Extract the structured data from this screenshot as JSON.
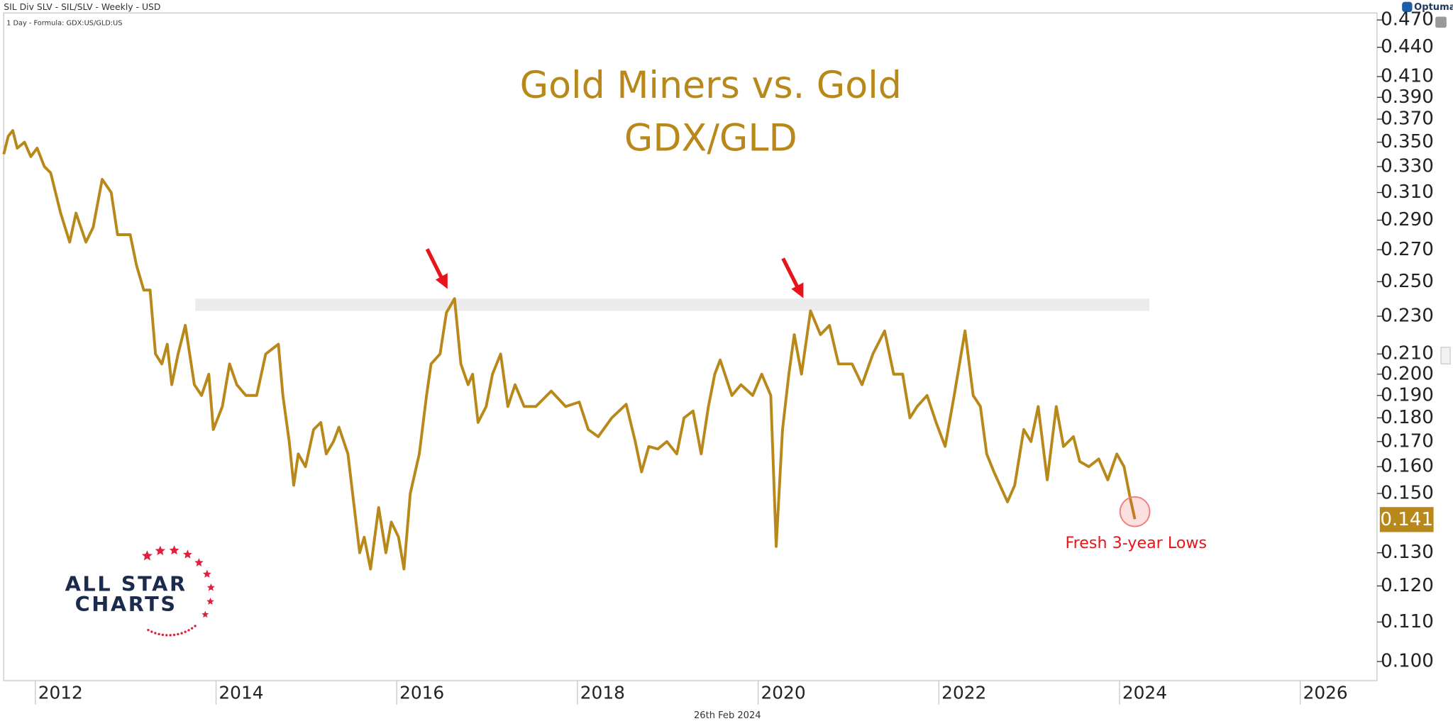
{
  "chart_data": {
    "type": "line",
    "header": "SIL Div SLV - SIL/SLV - Weekly - USD",
    "formula": "1 Day - Formula: GDX:US/GLD:US",
    "brand": "Optuma",
    "title": "Gold Miners vs. Gold",
    "subtitle": "GDX/GLD",
    "annotation": "Fresh 3-year Lows",
    "date_label": "26th Feb 2024",
    "logo": [
      "ALL STAR",
      "CHARTS"
    ],
    "color": "#b8891a",
    "y_scale": "log",
    "xlim": [
      2011.65,
      2026.85
    ],
    "xticks": [
      2012,
      2014,
      2016,
      2018,
      2020,
      2022,
      2024,
      2026
    ],
    "ylim": [
      0.0955,
      0.478
    ],
    "yticks": [
      {
        "value": 0.47,
        "label": "0.470"
      },
      {
        "value": 0.44,
        "label": "0.440"
      },
      {
        "value": 0.41,
        "label": "0.410"
      },
      {
        "value": 0.39,
        "label": "0.390"
      },
      {
        "value": 0.37,
        "label": "0.370"
      },
      {
        "value": 0.35,
        "label": "0.350"
      },
      {
        "value": 0.33,
        "label": "0.330"
      },
      {
        "value": 0.31,
        "label": "0.310"
      },
      {
        "value": 0.29,
        "label": "0.290"
      },
      {
        "value": 0.27,
        "label": "0.270"
      },
      {
        "value": 0.25,
        "label": "0.250"
      },
      {
        "value": 0.23,
        "label": "0.230"
      },
      {
        "value": 0.21,
        "label": "0.210"
      },
      {
        "value": 0.2,
        "label": "0.200"
      },
      {
        "value": 0.19,
        "label": "0.190"
      },
      {
        "value": 0.18,
        "label": "0.180"
      },
      {
        "value": 0.17,
        "label": "0.170"
      },
      {
        "value": 0.16,
        "label": "0.160"
      },
      {
        "value": 0.15,
        "label": "0.150"
      },
      {
        "value": 0.13,
        "label": "0.130"
      },
      {
        "value": 0.12,
        "label": "0.120"
      },
      {
        "value": 0.11,
        "label": "0.110"
      },
      {
        "value": 0.1,
        "label": "0.100"
      }
    ],
    "resistance_band": {
      "x": [
        2013.77,
        2024.33
      ],
      "y": [
        0.233,
        0.24
      ]
    },
    "x": [
      2011.65,
      2011.7,
      2011.75,
      2011.8,
      2011.88,
      2011.95,
      2012.02,
      2012.1,
      2012.17,
      2012.28,
      2012.38,
      2012.45,
      2012.56,
      2012.64,
      2012.74,
      2012.84,
      2012.91,
      2013.05,
      2013.12,
      2013.2,
      2013.27,
      2013.33,
      2013.4,
      2013.46,
      2013.51,
      2013.58,
      2013.66,
      2013.76,
      2013.84,
      2013.92,
      2013.97,
      2014.07,
      2014.15,
      2014.23,
      2014.33,
      2014.45,
      2014.55,
      2014.69,
      2014.74,
      2014.81,
      2014.86,
      2014.91,
      2014.99,
      2015.08,
      2015.16,
      2015.22,
      2015.3,
      2015.36,
      2015.46,
      2015.53,
      2015.59,
      2015.64,
      2015.71,
      2015.8,
      2015.88,
      2015.94,
      2016.02,
      2016.08,
      2016.15,
      2016.25,
      2016.33,
      2016.38,
      2016.48,
      2016.55,
      2016.64,
      2016.71,
      2016.79,
      2016.84,
      2016.9,
      2016.99,
      2017.06,
      2017.15,
      2017.23,
      2017.31,
      2017.41,
      2017.54,
      2017.71,
      2017.87,
      2018.02,
      2018.12,
      2018.23,
      2018.38,
      2018.54,
      2018.64,
      2018.71,
      2018.79,
      2018.89,
      2018.99,
      2019.1,
      2019.18,
      2019.28,
      2019.37,
      2019.45,
      2019.52,
      2019.58,
      2019.71,
      2019.81,
      2019.94,
      2020.04,
      2020.14,
      2020.2,
      2020.27,
      2020.34,
      2020.4,
      2020.48,
      2020.58,
      2020.69,
      2020.79,
      2020.89,
      2021.04,
      2021.15,
      2021.27,
      2021.4,
      2021.5,
      2021.6,
      2021.68,
      2021.76,
      2021.87,
      2021.97,
      2022.07,
      2022.17,
      2022.29,
      2022.38,
      2022.46,
      2022.53,
      2022.61,
      2022.69,
      2022.76,
      2022.84,
      2022.94,
      2023.02,
      2023.1,
      2023.2,
      2023.3,
      2023.38,
      2023.49,
      2023.56,
      2023.66,
      2023.77,
      2023.87,
      2023.97,
      2024.05,
      2024.12,
      2024.17
    ],
    "values": [
      0.34,
      0.355,
      0.36,
      0.345,
      0.35,
      0.338,
      0.345,
      0.33,
      0.325,
      0.295,
      0.275,
      0.295,
      0.275,
      0.285,
      0.32,
      0.31,
      0.28,
      0.28,
      0.26,
      0.245,
      0.245,
      0.21,
      0.205,
      0.215,
      0.195,
      0.21,
      0.225,
      0.195,
      0.19,
      0.2,
      0.175,
      0.185,
      0.205,
      0.195,
      0.19,
      0.19,
      0.21,
      0.215,
      0.19,
      0.17,
      0.153,
      0.165,
      0.16,
      0.175,
      0.178,
      0.165,
      0.17,
      0.176,
      0.165,
      0.145,
      0.13,
      0.135,
      0.125,
      0.145,
      0.13,
      0.14,
      0.135,
      0.125,
      0.15,
      0.165,
      0.19,
      0.205,
      0.21,
      0.232,
      0.24,
      0.205,
      0.195,
      0.2,
      0.178,
      0.185,
      0.2,
      0.21,
      0.185,
      0.195,
      0.185,
      0.185,
      0.192,
      0.185,
      0.187,
      0.175,
      0.172,
      0.18,
      0.186,
      0.17,
      0.158,
      0.168,
      0.167,
      0.17,
      0.165,
      0.18,
      0.183,
      0.165,
      0.185,
      0.2,
      0.207,
      0.19,
      0.195,
      0.19,
      0.2,
      0.19,
      0.132,
      0.175,
      0.2,
      0.22,
      0.2,
      0.233,
      0.22,
      0.225,
      0.205,
      0.205,
      0.195,
      0.21,
      0.222,
      0.2,
      0.2,
      0.18,
      0.185,
      0.19,
      0.178,
      0.168,
      0.19,
      0.222,
      0.19,
      0.185,
      0.165,
      0.158,
      0.152,
      0.147,
      0.153,
      0.175,
      0.17,
      0.185,
      0.155,
      0.185,
      0.168,
      0.172,
      0.162,
      0.16,
      0.163,
      0.155,
      0.165,
      0.16,
      0.148,
      0.141
    ]
  }
}
